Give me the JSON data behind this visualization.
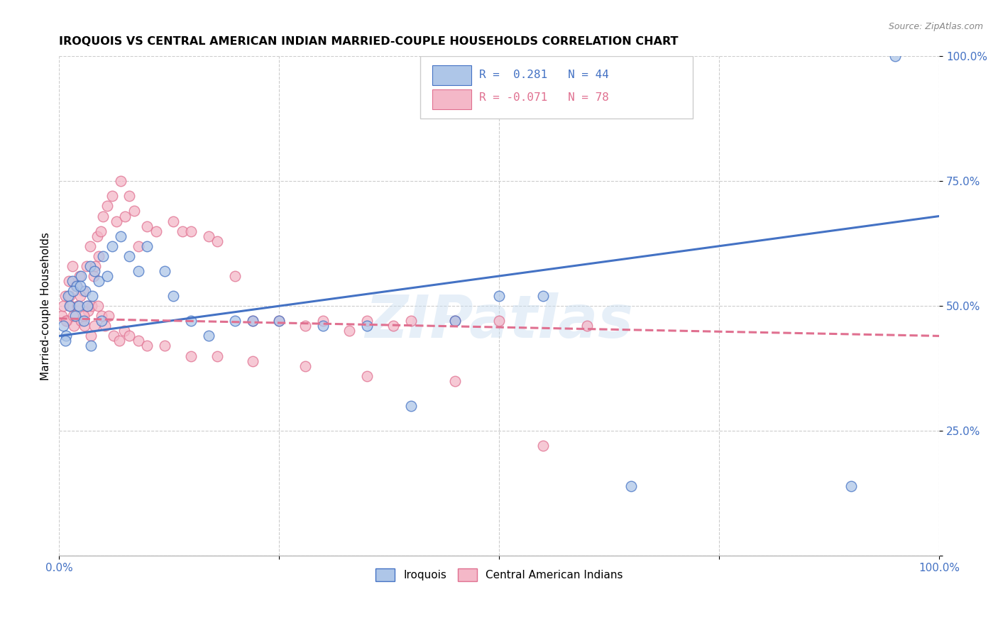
{
  "title": "IROQUOIS VS CENTRAL AMERICAN INDIAN MARRIED-COUPLE HOUSEHOLDS CORRELATION CHART",
  "source": "Source: ZipAtlas.com",
  "ylabel": "Married-couple Households",
  "xlim": [
    0,
    1
  ],
  "ylim": [
    0,
    1
  ],
  "xticks": [
    0,
    0.25,
    0.5,
    0.75,
    1.0
  ],
  "xticklabels": [
    "0.0%",
    "",
    "",
    "",
    "100.0%"
  ],
  "yticks": [
    0,
    0.25,
    0.5,
    0.75,
    1.0
  ],
  "yticklabels": [
    "",
    "25.0%",
    "50.0%",
    "75.0%",
    "100.0%"
  ],
  "legend_labels": [
    "Iroquois",
    "Central American Indians"
  ],
  "blue_R": "0.281",
  "blue_N": "44",
  "pink_R": "-0.071",
  "pink_N": "78",
  "blue_color": "#aec6e8",
  "pink_color": "#f4b8c8",
  "blue_line_color": "#4472c4",
  "pink_line_color": "#e07090",
  "watermark": "ZIPatlas",
  "blue_line_x": [
    0.0,
    1.0
  ],
  "blue_line_y": [
    0.44,
    0.68
  ],
  "pink_line_x": [
    0.0,
    1.0
  ],
  "pink_line_y": [
    0.475,
    0.44
  ],
  "blue_scatter_x": [
    0.005,
    0.008,
    0.01,
    0.012,
    0.015,
    0.018,
    0.02,
    0.022,
    0.025,
    0.028,
    0.03,
    0.032,
    0.035,
    0.038,
    0.04,
    0.045,
    0.05,
    0.055,
    0.06,
    0.07,
    0.08,
    0.09,
    0.1,
    0.12,
    0.13,
    0.15,
    0.17,
    0.2,
    0.22,
    0.25,
    0.3,
    0.35,
    0.4,
    0.45,
    0.5,
    0.55,
    0.65,
    0.9,
    0.95,
    0.007,
    0.016,
    0.024,
    0.036,
    0.048
  ],
  "blue_scatter_y": [
    0.46,
    0.44,
    0.52,
    0.5,
    0.55,
    0.48,
    0.54,
    0.5,
    0.56,
    0.47,
    0.53,
    0.5,
    0.58,
    0.52,
    0.57,
    0.55,
    0.6,
    0.56,
    0.62,
    0.64,
    0.6,
    0.57,
    0.62,
    0.57,
    0.52,
    0.47,
    0.44,
    0.47,
    0.47,
    0.47,
    0.46,
    0.46,
    0.3,
    0.47,
    0.52,
    0.52,
    0.14,
    0.14,
    1.0,
    0.43,
    0.53,
    0.54,
    0.42,
    0.47
  ],
  "pink_scatter_x": [
    0.003,
    0.005,
    0.007,
    0.009,
    0.011,
    0.013,
    0.015,
    0.017,
    0.019,
    0.021,
    0.023,
    0.025,
    0.027,
    0.029,
    0.031,
    0.033,
    0.035,
    0.037,
    0.039,
    0.041,
    0.043,
    0.045,
    0.047,
    0.05,
    0.055,
    0.06,
    0.065,
    0.07,
    0.075,
    0.08,
    0.085,
    0.09,
    0.1,
    0.11,
    0.13,
    0.14,
    0.15,
    0.17,
    0.18,
    0.2,
    0.22,
    0.25,
    0.28,
    0.3,
    0.33,
    0.35,
    0.38,
    0.4,
    0.45,
    0.5,
    0.55,
    0.6,
    0.008,
    0.012,
    0.016,
    0.02,
    0.024,
    0.028,
    0.032,
    0.036,
    0.04,
    0.044,
    0.048,
    0.052,
    0.056,
    0.062,
    0.068,
    0.074,
    0.08,
    0.09,
    0.1,
    0.12,
    0.15,
    0.18,
    0.22,
    0.28,
    0.35,
    0.45
  ],
  "pink_scatter_y": [
    0.48,
    0.5,
    0.52,
    0.47,
    0.55,
    0.5,
    0.58,
    0.46,
    0.54,
    0.5,
    0.56,
    0.47,
    0.53,
    0.46,
    0.58,
    0.49,
    0.62,
    0.5,
    0.56,
    0.58,
    0.64,
    0.6,
    0.65,
    0.68,
    0.7,
    0.72,
    0.67,
    0.75,
    0.68,
    0.72,
    0.69,
    0.62,
    0.66,
    0.65,
    0.67,
    0.65,
    0.65,
    0.64,
    0.63,
    0.56,
    0.47,
    0.47,
    0.46,
    0.47,
    0.45,
    0.47,
    0.46,
    0.47,
    0.47,
    0.47,
    0.22,
    0.46,
    0.47,
    0.52,
    0.48,
    0.54,
    0.52,
    0.48,
    0.5,
    0.44,
    0.46,
    0.5,
    0.48,
    0.46,
    0.48,
    0.44,
    0.43,
    0.45,
    0.44,
    0.43,
    0.42,
    0.42,
    0.4,
    0.4,
    0.39,
    0.38,
    0.36,
    0.35
  ]
}
